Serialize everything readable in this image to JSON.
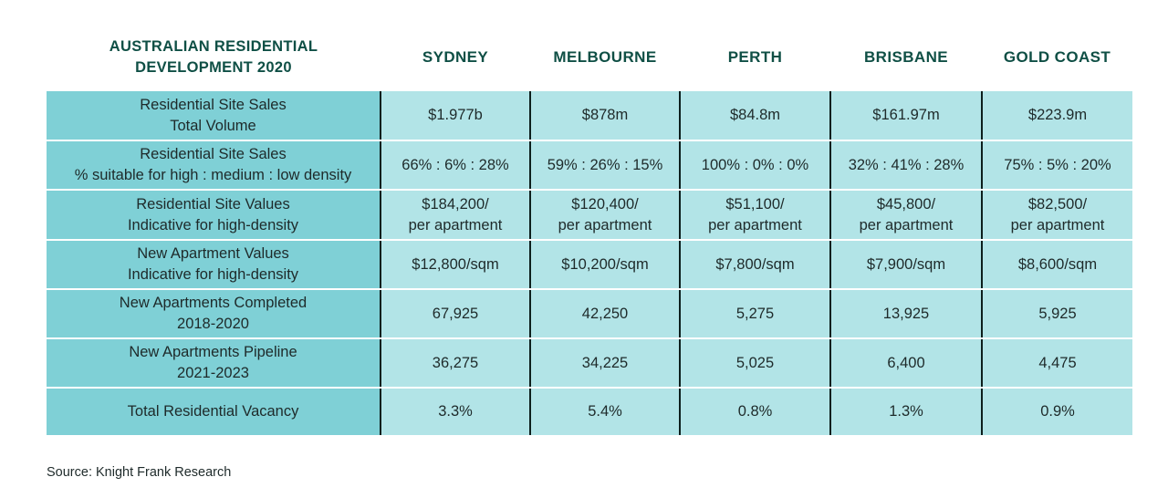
{
  "header": {
    "title": "AUSTRALIAN RESIDENTIAL\nDEVELOPMENT 2020",
    "cities": [
      "SYDNEY",
      "MELBOURNE",
      "PERTH",
      "BRISBANE",
      "GOLD COAST"
    ]
  },
  "rows": [
    {
      "label": "Residential Site Sales\nTotal Volume",
      "values": [
        "$1.977b",
        "$878m",
        "$84.8m",
        "$161.97m",
        "$223.9m"
      ]
    },
    {
      "label": "Residential Site Sales\n% suitable for high : medium : low density",
      "values": [
        "66% : 6% : 28%",
        "59% : 26% : 15%",
        "100% : 0% : 0%",
        "32% : 41% : 28%",
        "75% : 5% : 20%"
      ]
    },
    {
      "label": "Residential Site Values\nIndicative for high-density",
      "values": [
        "$184,200/\nper apartment",
        "$120,400/\nper apartment",
        "$51,100/\nper apartment",
        "$45,800/\nper apartment",
        "$82,500/\nper apartment"
      ]
    },
    {
      "label": "New Apartment Values\nIndicative for high-density",
      "values": [
        "$12,800/sqm",
        "$10,200/sqm",
        "$7,800/sqm",
        "$7,900/sqm",
        "$8,600/sqm"
      ]
    },
    {
      "label": "New Apartments Completed\n2018-2020",
      "values": [
        "67,925",
        "42,250",
        "5,275",
        "13,925",
        "5,925"
      ]
    },
    {
      "label": "New Apartments Pipeline\n2021-2023",
      "values": [
        "36,275",
        "34,225",
        "5,025",
        "6,400",
        "4,475"
      ]
    },
    {
      "label": "Total Residential Vacancy",
      "values": [
        "3.3%",
        "5.4%",
        "0.8%",
        "1.3%",
        "0.9%"
      ]
    }
  ],
  "source": "Source: Knight Frank Research",
  "colors": {
    "heading": "#0f4f45",
    "label_cell": "#7fd0d6",
    "value_cell": "#b2e4e7",
    "divider": "#0d1f1d"
  }
}
